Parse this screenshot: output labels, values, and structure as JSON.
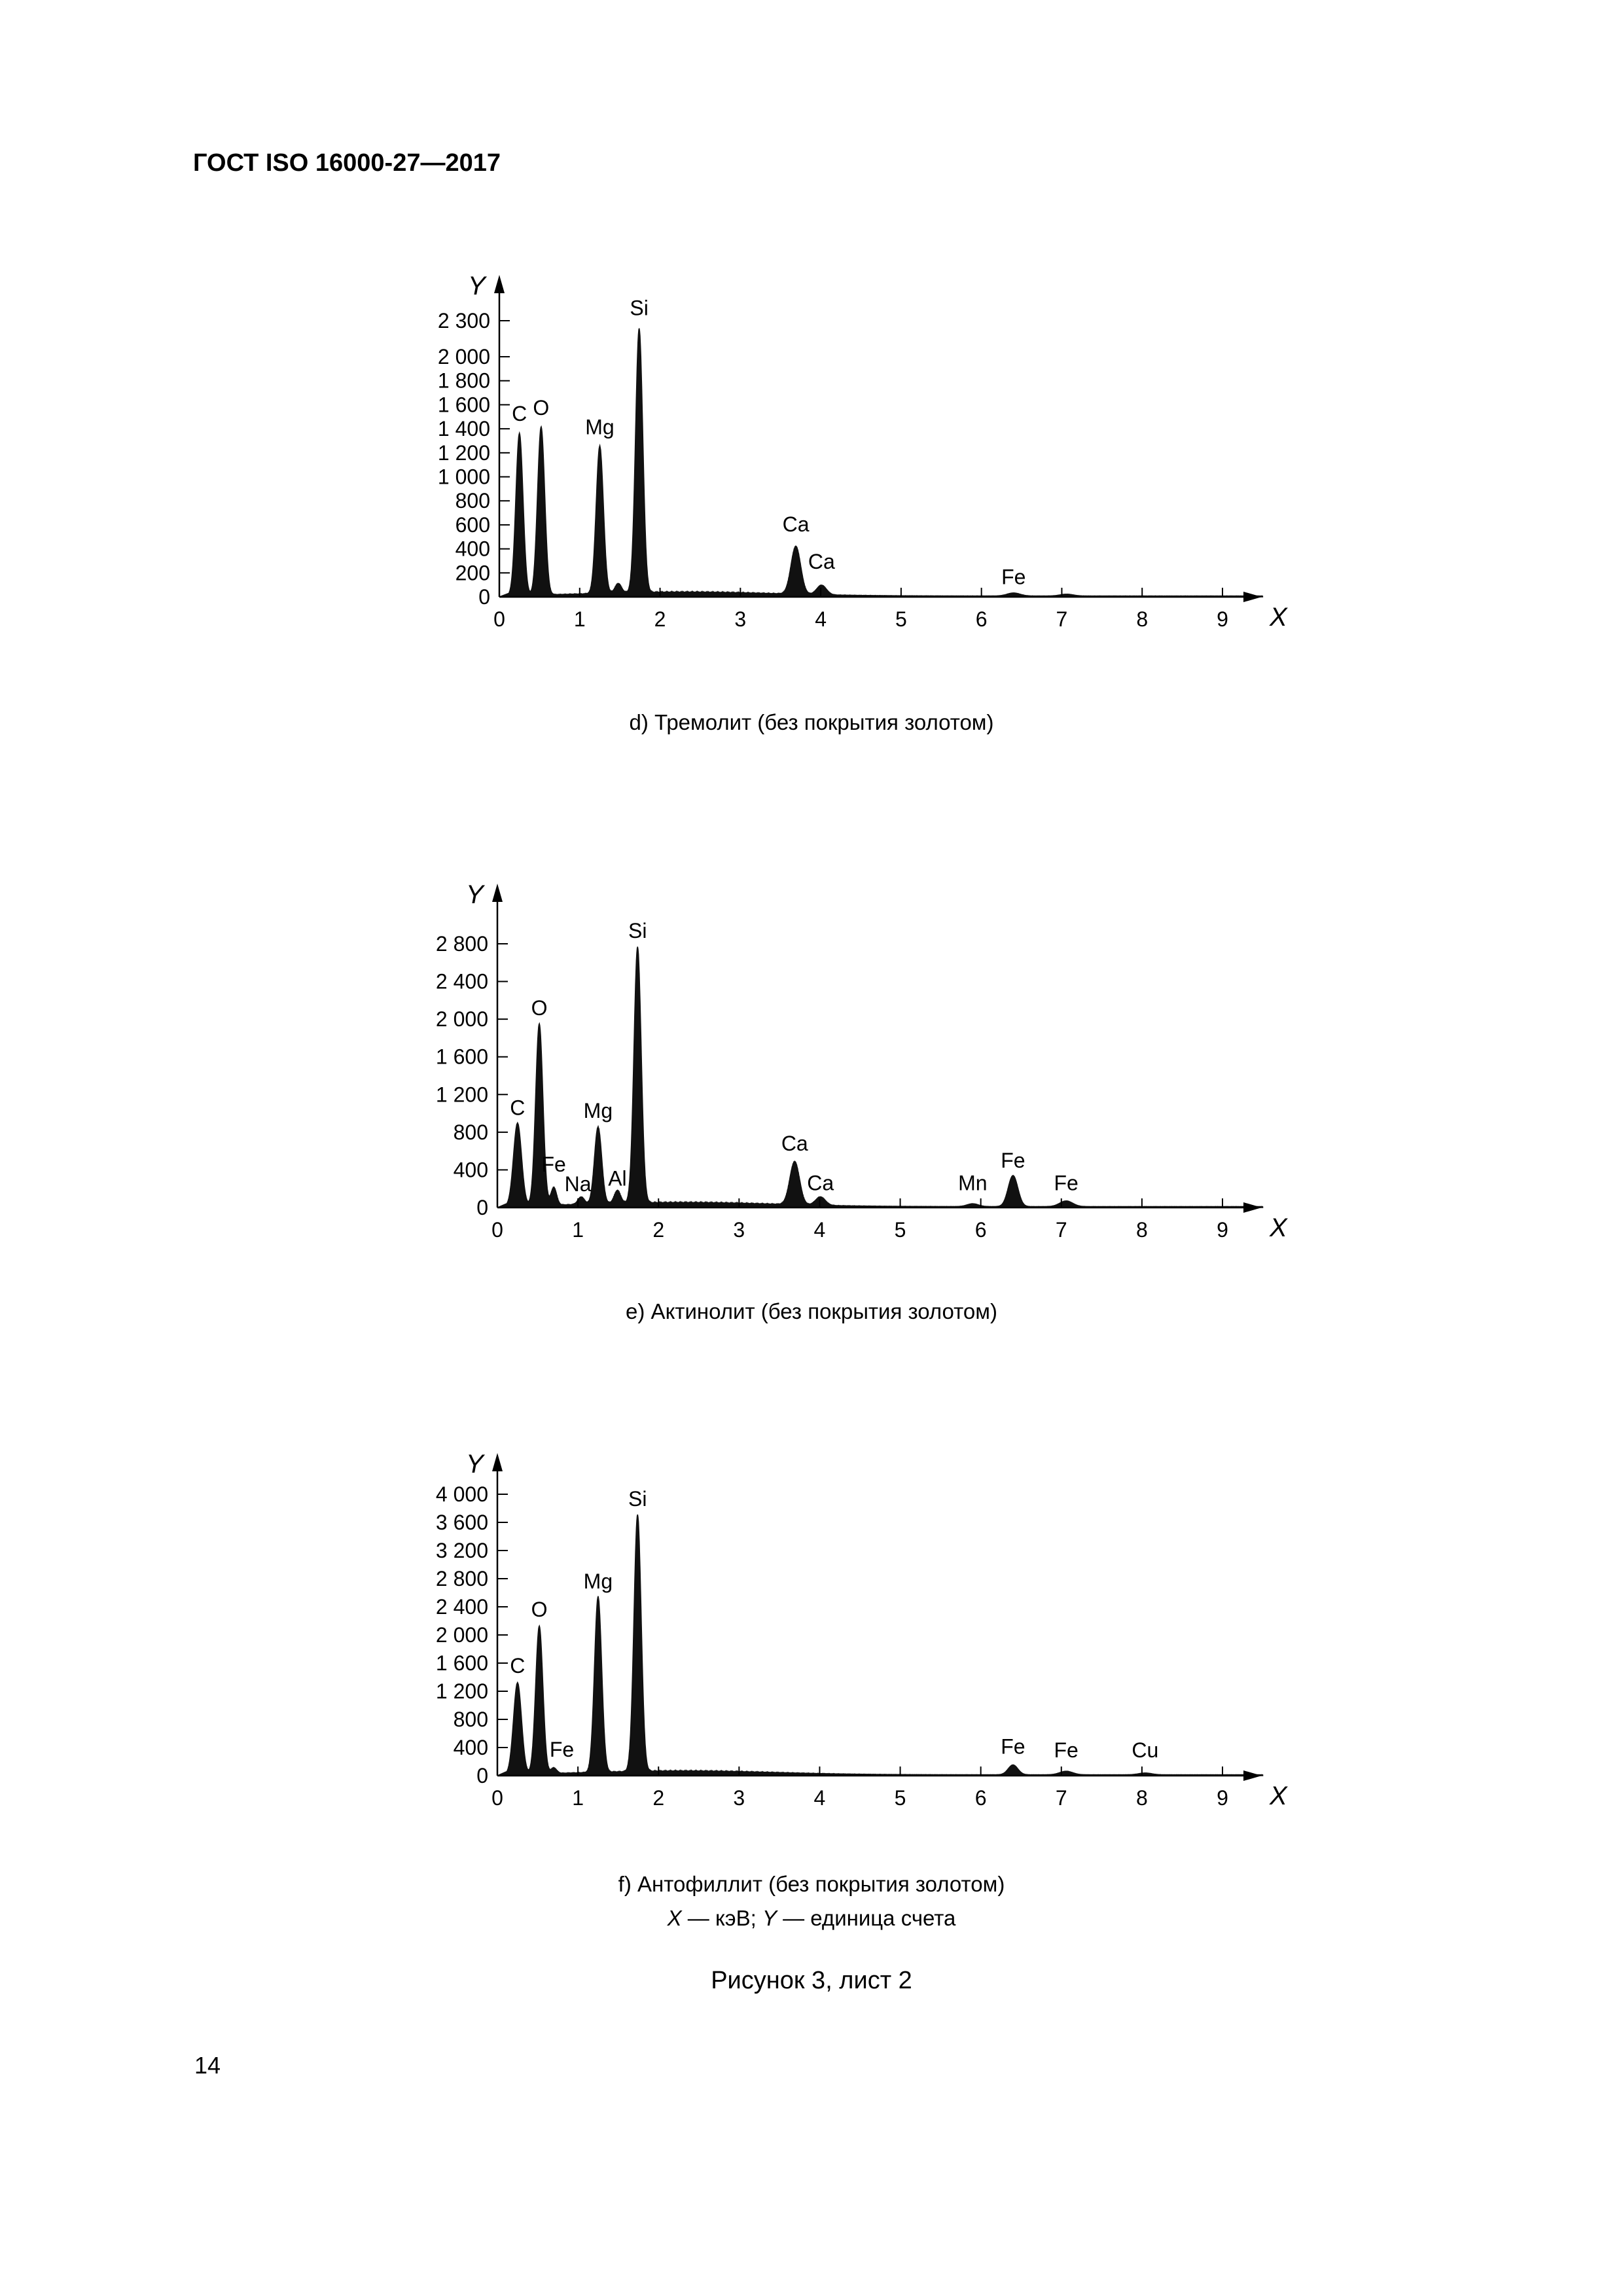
{
  "header": {
    "doc_id": "ГОСТ ISO 16000-27—2017"
  },
  "chart_data": [
    {
      "type": "area",
      "caption": "d) Тремолит (без покрытия золотом)",
      "xlabel": "X",
      "ylabel": "Y",
      "xlim": [
        0,
        9.5
      ],
      "ylim": [
        0,
        2300
      ],
      "x_ticks": [
        0,
        1,
        2,
        3,
        4,
        5,
        6,
        7,
        8,
        9
      ],
      "x_tick_labels": [
        "0",
        "1",
        "2",
        "3",
        "4",
        "5",
        "6",
        "7",
        "8",
        "9"
      ],
      "y_ticks": [
        0,
        200,
        400,
        600,
        800,
        1000,
        1200,
        1400,
        1600,
        1800,
        2000,
        2300
      ],
      "y_tick_labels": [
        "0",
        "200",
        "400",
        "600",
        "800",
        "1 000",
        "1 200",
        "1 400",
        "1 600",
        "1 800",
        "2 000",
        "2 300"
      ],
      "baseline": 30,
      "peaks": [
        {
          "label": "C",
          "x": 0.25,
          "y": 1350,
          "width": 0.045,
          "label_dx": 0.0,
          "label_y": 1400
        },
        {
          "label": "O",
          "x": 0.52,
          "y": 1400,
          "width": 0.045,
          "label_dx": 0.0,
          "label_y": 1450
        },
        {
          "label": "Mg",
          "x": 1.25,
          "y": 1230,
          "width": 0.045,
          "label_dx": 0.0,
          "label_y": 1290
        },
        {
          "label": "",
          "x": 1.48,
          "y": 80,
          "width": 0.04
        },
        {
          "label": "Si",
          "x": 1.74,
          "y": 2200,
          "width": 0.045,
          "label_dx": 0.0,
          "label_y": 2280
        },
        {
          "label": "Ca",
          "x": 3.69,
          "y": 400,
          "width": 0.06,
          "label_dx": 0.0,
          "label_y": 480
        },
        {
          "label": "Ca",
          "x": 4.01,
          "y": 80,
          "width": 0.06,
          "label_dx": 0.0,
          "label_y": 170
        },
        {
          "label": "Fe",
          "x": 6.4,
          "y": 25,
          "width": 0.08,
          "label_dx": 0.0,
          "label_y": 40
        },
        {
          "label": "",
          "x": 7.06,
          "y": 15,
          "width": 0.08
        }
      ]
    },
    {
      "type": "area",
      "caption": "e) Актинолит (без покрытия золотом)",
      "xlabel": "X",
      "ylabel": "Y",
      "xlim": [
        0,
        9.5
      ],
      "ylim": [
        0,
        2800
      ],
      "x_ticks": [
        0,
        1,
        2,
        3,
        4,
        5,
        6,
        7,
        8,
        9
      ],
      "x_tick_labels": [
        "0",
        "1",
        "2",
        "3",
        "4",
        "5",
        "6",
        "7",
        "8",
        "9"
      ],
      "y_ticks": [
        0,
        400,
        800,
        1200,
        1600,
        2000,
        2400,
        2800
      ],
      "y_tick_labels": [
        "0",
        "400",
        "800",
        "1 200",
        "1 600",
        "2 000",
        "2 400",
        "2 800"
      ],
      "baseline": 40,
      "peaks": [
        {
          "label": "C",
          "x": 0.25,
          "y": 880,
          "width": 0.05,
          "label_dx": 0.0,
          "label_y": 900
        },
        {
          "label": "O",
          "x": 0.52,
          "y": 1930,
          "width": 0.045,
          "label_dx": 0.0,
          "label_y": 1960
        },
        {
          "label": "Fe",
          "x": 0.7,
          "y": 190,
          "width": 0.035,
          "label_dx": 0.0,
          "label_y": 300
        },
        {
          "label": "Na",
          "x": 1.04,
          "y": 80,
          "width": 0.04,
          "label_dx": -0.04,
          "label_y": 90
        },
        {
          "label": "Mg",
          "x": 1.25,
          "y": 820,
          "width": 0.045,
          "label_dx": 0.0,
          "label_y": 870
        },
        {
          "label": "Al",
          "x": 1.49,
          "y": 140,
          "width": 0.04,
          "label_dx": 0.0,
          "label_y": 150
        },
        {
          "label": "Si",
          "x": 1.74,
          "y": 2720,
          "width": 0.045,
          "label_dx": 0.0,
          "label_y": 2780
        },
        {
          "label": "Ca",
          "x": 3.69,
          "y": 460,
          "width": 0.06,
          "label_dx": 0.0,
          "label_y": 520
        },
        {
          "label": "Ca",
          "x": 4.01,
          "y": 90,
          "width": 0.06,
          "label_dx": 0.0,
          "label_y": 100
        },
        {
          "label": "Mn",
          "x": 5.9,
          "y": 30,
          "width": 0.07,
          "label_dx": 0.0,
          "label_y": 100
        },
        {
          "label": "Fe",
          "x": 6.4,
          "y": 330,
          "width": 0.06,
          "label_dx": 0.0,
          "label_y": 340
        },
        {
          "label": "Fe",
          "x": 7.06,
          "y": 60,
          "width": 0.08,
          "label_dx": 0.0,
          "label_y": 100
        }
      ]
    },
    {
      "type": "area",
      "caption": "f) Антофиллит (без покрытия золотом)",
      "xlabel": "X",
      "ylabel": "Y",
      "xlim": [
        0,
        9.5
      ],
      "ylim": [
        0,
        4000
      ],
      "x_ticks": [
        0,
        1,
        2,
        3,
        4,
        5,
        6,
        7,
        8,
        9
      ],
      "x_tick_labels": [
        "0",
        "1",
        "2",
        "3",
        "4",
        "5",
        "6",
        "7",
        "8",
        "9"
      ],
      "y_ticks": [
        0,
        400,
        800,
        1200,
        1600,
        2000,
        2400,
        2800,
        3200,
        3600,
        4000
      ],
      "y_tick_labels": [
        "0",
        "400",
        "800",
        "1 200",
        "1 600",
        "2 000",
        "2 400",
        "2 800",
        "3 200",
        "3 600",
        "4 000"
      ],
      "baseline": 50,
      "peaks": [
        {
          "label": "C",
          "x": 0.25,
          "y": 1300,
          "width": 0.05,
          "label_dx": 0.0,
          "label_y": 1350
        },
        {
          "label": "O",
          "x": 0.52,
          "y": 2100,
          "width": 0.045,
          "label_dx": 0.0,
          "label_y": 2150
        },
        {
          "label": "Fe",
          "x": 0.7,
          "y": 80,
          "width": 0.035,
          "label_dx": 0.1,
          "label_y": 160
        },
        {
          "label": "Mg",
          "x": 1.25,
          "y": 2500,
          "width": 0.045,
          "label_dx": 0.0,
          "label_y": 2550
        },
        {
          "label": "Si",
          "x": 1.74,
          "y": 3650,
          "width": 0.045,
          "label_dx": 0.0,
          "label_y": 3720
        },
        {
          "label": "Fe",
          "x": 6.4,
          "y": 140,
          "width": 0.06,
          "label_dx": 0.0,
          "label_y": 200
        },
        {
          "label": "Fe",
          "x": 7.06,
          "y": 50,
          "width": 0.08,
          "label_dx": 0.0,
          "label_y": 150
        },
        {
          "label": "Cu",
          "x": 8.04,
          "y": 25,
          "width": 0.08,
          "label_dx": 0.0,
          "label_y": 150
        }
      ]
    }
  ],
  "legend": {
    "x_var": "X",
    "x_desc": " — кэВ; ",
    "y_var": "Y",
    "y_desc": " — единица счета"
  },
  "figure_title": "Рисунок 3, лист 2",
  "page_number": "14"
}
